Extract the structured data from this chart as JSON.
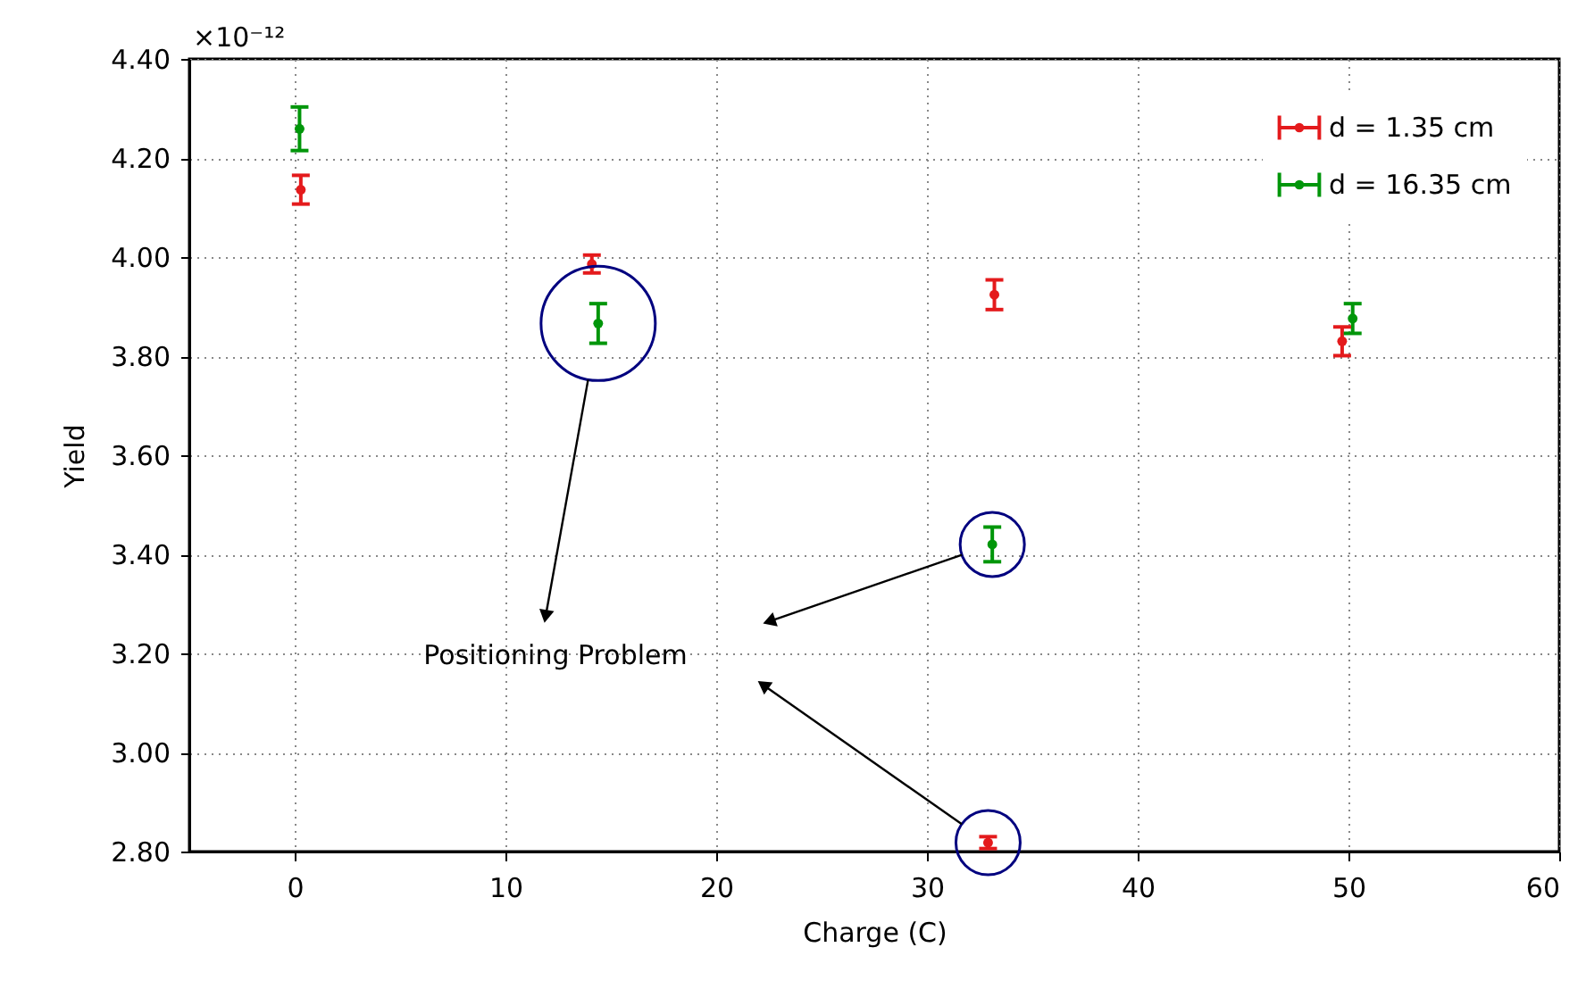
{
  "chart_data": {
    "type": "scatter",
    "xlabel": "Charge (C)",
    "ylabel": "Yield",
    "series": [
      {
        "name": "d = 1.35 cm",
        "color": "#e41a1c",
        "x": [
          0.29,
          14.1,
          33.2,
          49.7,
          32.9
        ],
        "values": [
          4.136,
          3.986,
          3.924,
          3.83,
          2.818
        ],
        "errors": [
          0.029,
          0.018,
          0.03,
          0.029,
          0.012
        ]
      },
      {
        "name": "d = 16.35 cm",
        "color": "#00960a",
        "x": [
          0.23,
          14.4,
          33.1,
          50.2
        ],
        "values": [
          4.259,
          3.866,
          3.42,
          3.876
        ],
        "errors": [
          0.044,
          0.04,
          0.035,
          0.03
        ]
      }
    ],
    "xlim": [
      -5,
      60
    ],
    "xticks": [
      0,
      10,
      20,
      30,
      40,
      50,
      60
    ],
    "ylim": [
      2.8,
      4.4
    ],
    "yticks": [
      {
        "value": 2.8,
        "label": "2.80"
      },
      {
        "value": 3.0,
        "label": "3.00"
      },
      {
        "value": 3.2,
        "label": "3.20"
      },
      {
        "value": 3.4,
        "label": "3.40"
      },
      {
        "value": 3.6,
        "label": "3.60"
      },
      {
        "value": 3.8,
        "label": "3.80"
      },
      {
        "value": 4.0,
        "label": "4.00"
      },
      {
        "value": 4.2,
        "label": "4.20"
      },
      {
        "value": 4.4,
        "label": "4.40"
      }
    ],
    "annotations": [
      "×10⁻¹²",
      "Positioning Problem"
    ],
    "grid": true,
    "legend": "top right",
    "marker": "circle"
  }
}
